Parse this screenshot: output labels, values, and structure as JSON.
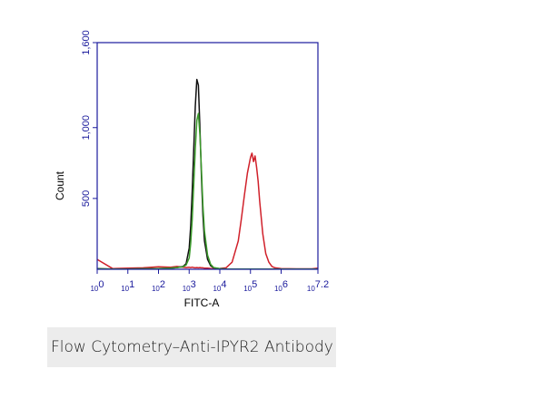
{
  "chart_data": {
    "type": "line",
    "ylabel": "Count",
    "xlabel": "FITC-A",
    "x_log_base": "10",
    "xlim": [
      0,
      7.2
    ],
    "xticks": [
      0,
      1,
      2,
      3,
      4,
      5,
      6,
      7.2
    ],
    "ylim": [
      0,
      1600
    ],
    "yticks": [
      500,
      {
        "value": 1000,
        "label": "1,000"
      },
      {
        "value": 1600,
        "label": "1,600"
      }
    ],
    "axis_color": "#1a1a9c",
    "x": [
      0,
      0.5,
      1,
      1.5,
      2,
      2.4,
      2.6,
      2.8,
      2.9,
      3.0,
      3.05,
      3.1,
      3.15,
      3.2,
      3.25,
      3.3,
      3.35,
      3.4,
      3.45,
      3.5,
      3.6,
      3.7,
      3.8,
      4.0,
      4.2,
      4.4,
      4.6,
      4.7,
      4.8,
      4.9,
      5.0,
      5.05,
      5.1,
      5.15,
      5.2,
      5.25,
      5.3,
      5.4,
      5.5,
      5.6,
      5.7,
      5.8,
      6.0,
      6.5,
      7.0,
      7.2
    ],
    "series": [
      {
        "color": "#d0202a",
        "values": [
          70,
          5,
          8,
          10,
          18,
          15,
          20,
          15,
          12,
          14,
          12,
          15,
          12,
          10,
          12,
          10,
          12,
          10,
          10,
          8,
          8,
          6,
          5,
          6,
          10,
          50,
          200,
          350,
          520,
          680,
          790,
          820,
          760,
          800,
          720,
          620,
          480,
          250,
          110,
          50,
          20,
          10,
          5,
          3,
          3,
          8
        ]
      },
      {
        "color": "#111111",
        "values": [
          5,
          2,
          2,
          3,
          5,
          8,
          12,
          20,
          40,
          150,
          300,
          550,
          850,
          1150,
          1340,
          1300,
          1000,
          650,
          380,
          200,
          70,
          25,
          10,
          4,
          2,
          2,
          2,
          1,
          1,
          1,
          1,
          1,
          1,
          1,
          1,
          1,
          1,
          1,
          1,
          1,
          1,
          1,
          1,
          1,
          1,
          1
        ]
      },
      {
        "color": "#3a9a2a",
        "values": [
          3,
          2,
          2,
          3,
          5,
          8,
          12,
          18,
          30,
          80,
          180,
          350,
          600,
          850,
          1050,
          1100,
          950,
          700,
          450,
          270,
          100,
          35,
          12,
          5,
          2,
          2,
          2,
          1,
          1,
          1,
          1,
          1,
          1,
          1,
          1,
          1,
          1,
          1,
          1,
          1,
          1,
          1,
          1,
          1,
          1,
          1
        ]
      }
    ]
  },
  "caption": "Flow Cytometry–Anti-IPYR2 Antibody"
}
